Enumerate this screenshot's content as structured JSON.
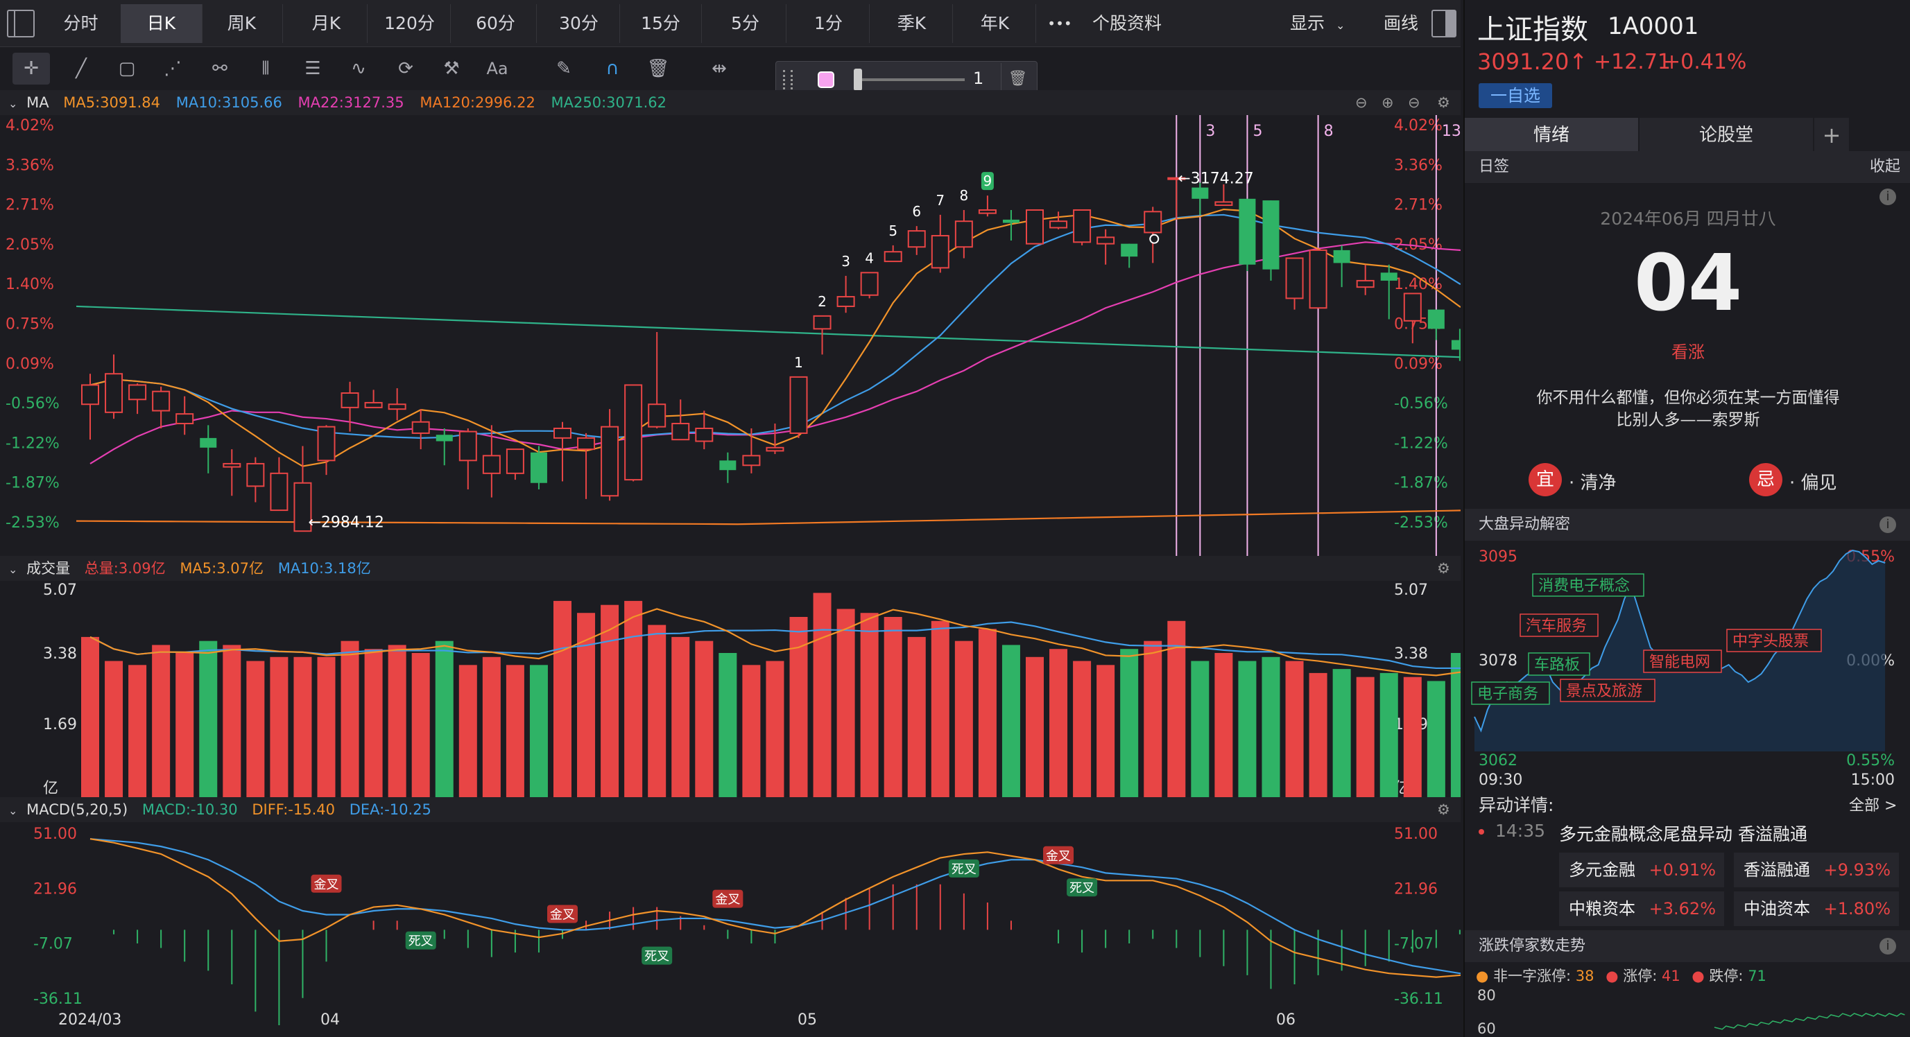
{
  "tabs": [
    {
      "label": "分时",
      "active": false
    },
    {
      "label": "日K",
      "active": true
    },
    {
      "label": "周K",
      "active": false
    },
    {
      "label": "月K",
      "active": false
    },
    {
      "label": "120分",
      "active": false
    },
    {
      "label": "60分",
      "active": false
    },
    {
      "label": "30分",
      "active": false
    },
    {
      "label": "15分",
      "active": false
    },
    {
      "label": "5分",
      "active": false
    },
    {
      "label": "1分",
      "active": false
    },
    {
      "label": "季K",
      "active": false
    },
    {
      "label": "年K",
      "active": false
    }
  ],
  "topbar": {
    "more": "•••",
    "profile": "个股资料",
    "display": "显示",
    "draw": "画线"
  },
  "slider": {
    "value": "1"
  },
  "ma_panel": {
    "title": "MA",
    "ma5": "MA5:3091.84",
    "ma10": "MA10:3105.66",
    "ma22": "MA22:3127.35",
    "ma120": "MA120:2996.22",
    "ma250": "MA250:3071.62",
    "high_label": "←3174.27",
    "low_label": "←2984.12",
    "pct_labels": [
      "4.02%",
      "3.36%",
      "2.71%",
      "2.05%",
      "1.40%",
      "0.75%",
      "0.09%",
      "-0.56%",
      "-1.22%",
      "-1.87%",
      "-2.53%"
    ],
    "count_labels": [
      "1",
      "2",
      "3",
      "4",
      "5",
      "6",
      "7",
      "8",
      "9"
    ],
    "vline_labels": [
      "3",
      "5",
      "8",
      "13"
    ]
  },
  "vol_panel": {
    "title": "成交量",
    "total": "总量:3.09亿",
    "ma5": "MA5:3.07亿",
    "ma10": "MA10:3.18亿",
    "y_labels": [
      "5.07",
      "3.38",
      "1.69",
      "亿"
    ]
  },
  "macd_panel": {
    "title": "MACD(5,20,5)",
    "macd": "MACD:-10.30",
    "diff": "DIFF:-15.40",
    "dea": "DEA:-10.25",
    "y_labels": [
      "51.00",
      "21.96",
      "-7.07",
      "-36.11"
    ],
    "x_labels": [
      "2024/03",
      "04",
      "05",
      "06"
    ],
    "golden": "金叉",
    "dead": "死叉"
  },
  "chart_data": {
    "type": "candlestick",
    "candles": [
      [
        3033,
        3052,
        3045,
        3011
      ],
      [
        3028,
        3064,
        3052,
        3024
      ],
      [
        3036,
        3046,
        3045,
        3027
      ],
      [
        3029,
        3044,
        3041,
        3018
      ],
      [
        3021,
        3038,
        3027,
        3014
      ],
      [
        3012,
        3020,
        3006,
        2990
      ],
      [
        2994,
        3005,
        2996,
        2976
      ],
      [
        2982,
        3000,
        2996,
        2972
      ],
      [
        2967,
        3000,
        2990,
        2987
      ],
      [
        2954,
        3007,
        2984,
        2984
      ],
      [
        2998,
        3020,
        3019,
        2989
      ],
      [
        3031,
        3047,
        3040,
        3016
      ],
      [
        3031,
        3042,
        3034,
        3031
      ],
      [
        3030,
        3043,
        3033,
        3023
      ],
      [
        3015,
        3030,
        3022,
        3005
      ],
      [
        3014,
        3018,
        3010,
        2995
      ],
      [
        2998,
        3018,
        3016,
        2980
      ],
      [
        2990,
        3020,
        3001,
        2975
      ],
      [
        2990,
        3000,
        3005,
        2986
      ],
      [
        3003,
        3007,
        2984,
        2980
      ],
      [
        3012,
        3022,
        3018,
        2985
      ],
      [
        3005,
        3015,
        3012,
        2974
      ],
      [
        2976,
        3030,
        3019,
        2973
      ],
      [
        2986,
        3043,
        3045,
        2985
      ],
      [
        3019,
        3078,
        3033,
        3018
      ],
      [
        3011,
        3036,
        3021,
        3011
      ],
      [
        3010,
        3029,
        3018,
        3005
      ],
      [
        2998,
        3003,
        2992,
        2984
      ],
      [
        2995,
        3018,
        3001,
        2990
      ],
      [
        3004,
        3021,
        3006,
        3002
      ],
      [
        3015,
        3048,
        3050,
        3012
      ],
      [
        3080,
        3083,
        3088,
        3064
      ],
      [
        3094,
        3113,
        3100,
        3090
      ],
      [
        3101,
        3114,
        3115,
        3099
      ],
      [
        3122,
        3132,
        3128,
        3122
      ],
      [
        3131,
        3144,
        3141,
        3126
      ],
      [
        3118,
        3151,
        3138,
        3115
      ],
      [
        3131,
        3154,
        3147,
        3124
      ],
      [
        3152,
        3163,
        3154,
        3150
      ],
      [
        3148,
        3154,
        3146,
        3135
      ],
      [
        3133,
        3147,
        3154,
        3133
      ],
      [
        3143,
        3153,
        3147,
        3142
      ],
      [
        3134,
        3144,
        3154,
        3132
      ],
      [
        3133,
        3142,
        3137,
        3120
      ],
      [
        3133,
        3130,
        3125,
        3118
      ],
      [
        3140,
        3156,
        3153,
        3121
      ],
      [
        3174,
        3174,
        3174,
        3148
      ],
      [
        3168,
        3171,
        3161,
        3151
      ],
      [
        3157,
        3170,
        3159,
        3157
      ],
      [
        3161,
        3156,
        3120,
        3116
      ],
      [
        3160,
        3117,
        3117,
        3110
      ],
      [
        3099,
        3100,
        3124,
        3092
      ],
      [
        3093,
        3127,
        3129,
        3094
      ],
      [
        3129,
        3132,
        3121,
        3106
      ],
      [
        3106,
        3120,
        3110,
        3101
      ],
      [
        3115,
        3120,
        3110,
        3086
      ],
      [
        3085,
        3100,
        3102,
        3071
      ],
      [
        3092,
        3092,
        3080,
        3073
      ],
      [
        3073,
        3080,
        3067,
        3060
      ],
      [
        3061,
        3076,
        3091,
        3058
      ]
    ],
    "volume": [
      4.0,
      3.4,
      3.3,
      3.8,
      3.6,
      3.9,
      3.8,
      3.4,
      3.5,
      3.5,
      3.5,
      3.9,
      3.7,
      3.8,
      3.6,
      3.9,
      3.3,
      3.5,
      3.3,
      3.3,
      4.9,
      4.6,
      4.8,
      4.9,
      4.3,
      4.0,
      3.9,
      3.6,
      3.3,
      3.4,
      4.5,
      5.1,
      4.7,
      4.6,
      4.5,
      4.0,
      4.4,
      3.9,
      4.2,
      3.8,
      3.5,
      3.7,
      3.4,
      3.3,
      3.7,
      3.9,
      4.4,
      3.4,
      3.6,
      3.4,
      3.5,
      3.4,
      3.1,
      3.2,
      3.0,
      3.1,
      3.0,
      2.9,
      3.6,
      3.1
    ],
    "ylim_price": [
      2951.5,
      3207.1
    ],
    "ylim_volume": [
      0,
      5.4
    ],
    "ylim_macd": [
      -36.11,
      51.0
    ]
  },
  "right": {
    "name": "上证指数",
    "code": "1A0001",
    "price": "3091.20↑",
    "change": "+12.71",
    "pct": "+0.41%",
    "watch": "一自选",
    "tabs": [
      "情绪",
      "论股堂"
    ],
    "plus": "+",
    "daily": {
      "title": "日签",
      "collapse": "收起",
      "date": "2024年06月 四月廿八",
      "day": "04",
      "mood": "看涨",
      "quote1": "你不用什么都懂，但你必须在某一方面懂得",
      "quote2": "比别人多——索罗斯",
      "yi": "宜",
      "yi_text": "· 清净",
      "ji": "忌",
      "ji_text": "· 偏见"
    },
    "move": {
      "title": "大盘异动解密",
      "y_top": "3095",
      "y_mid": "3078",
      "y_bot": "3062",
      "pct_top": "0.55%",
      "pct_mid": "0.00%",
      "pct_bot": "0.55%",
      "t_start": "09:30",
      "t_end": "15:00",
      "tags": [
        "消费电子概念",
        "汽车服务",
        "车路板",
        "电子商务",
        "景点及旅游",
        "智能电网",
        "中字头股票"
      ]
    },
    "detail": {
      "title": "异动详情:",
      "all": "全部 >",
      "time": "14:35",
      "text": "多元金融概念尾盘异动 香溢融通",
      "items": [
        {
          "name": "多元金融",
          "pct": "+0.91%"
        },
        {
          "name": "香溢融通",
          "pct": "+9.93%"
        },
        {
          "name": "中粮资本",
          "pct": "+3.62%"
        },
        {
          "name": "中油资本",
          "pct": "+1.80%"
        }
      ]
    },
    "limit": {
      "title": "涨跌停家数走势",
      "a_label": "非一字涨停:",
      "a_val": "38",
      "b_label": "涨停:",
      "b_val": "41",
      "c_label": "跌停:",
      "c_val": "71",
      "y1": "80",
      "y2": "60"
    }
  }
}
